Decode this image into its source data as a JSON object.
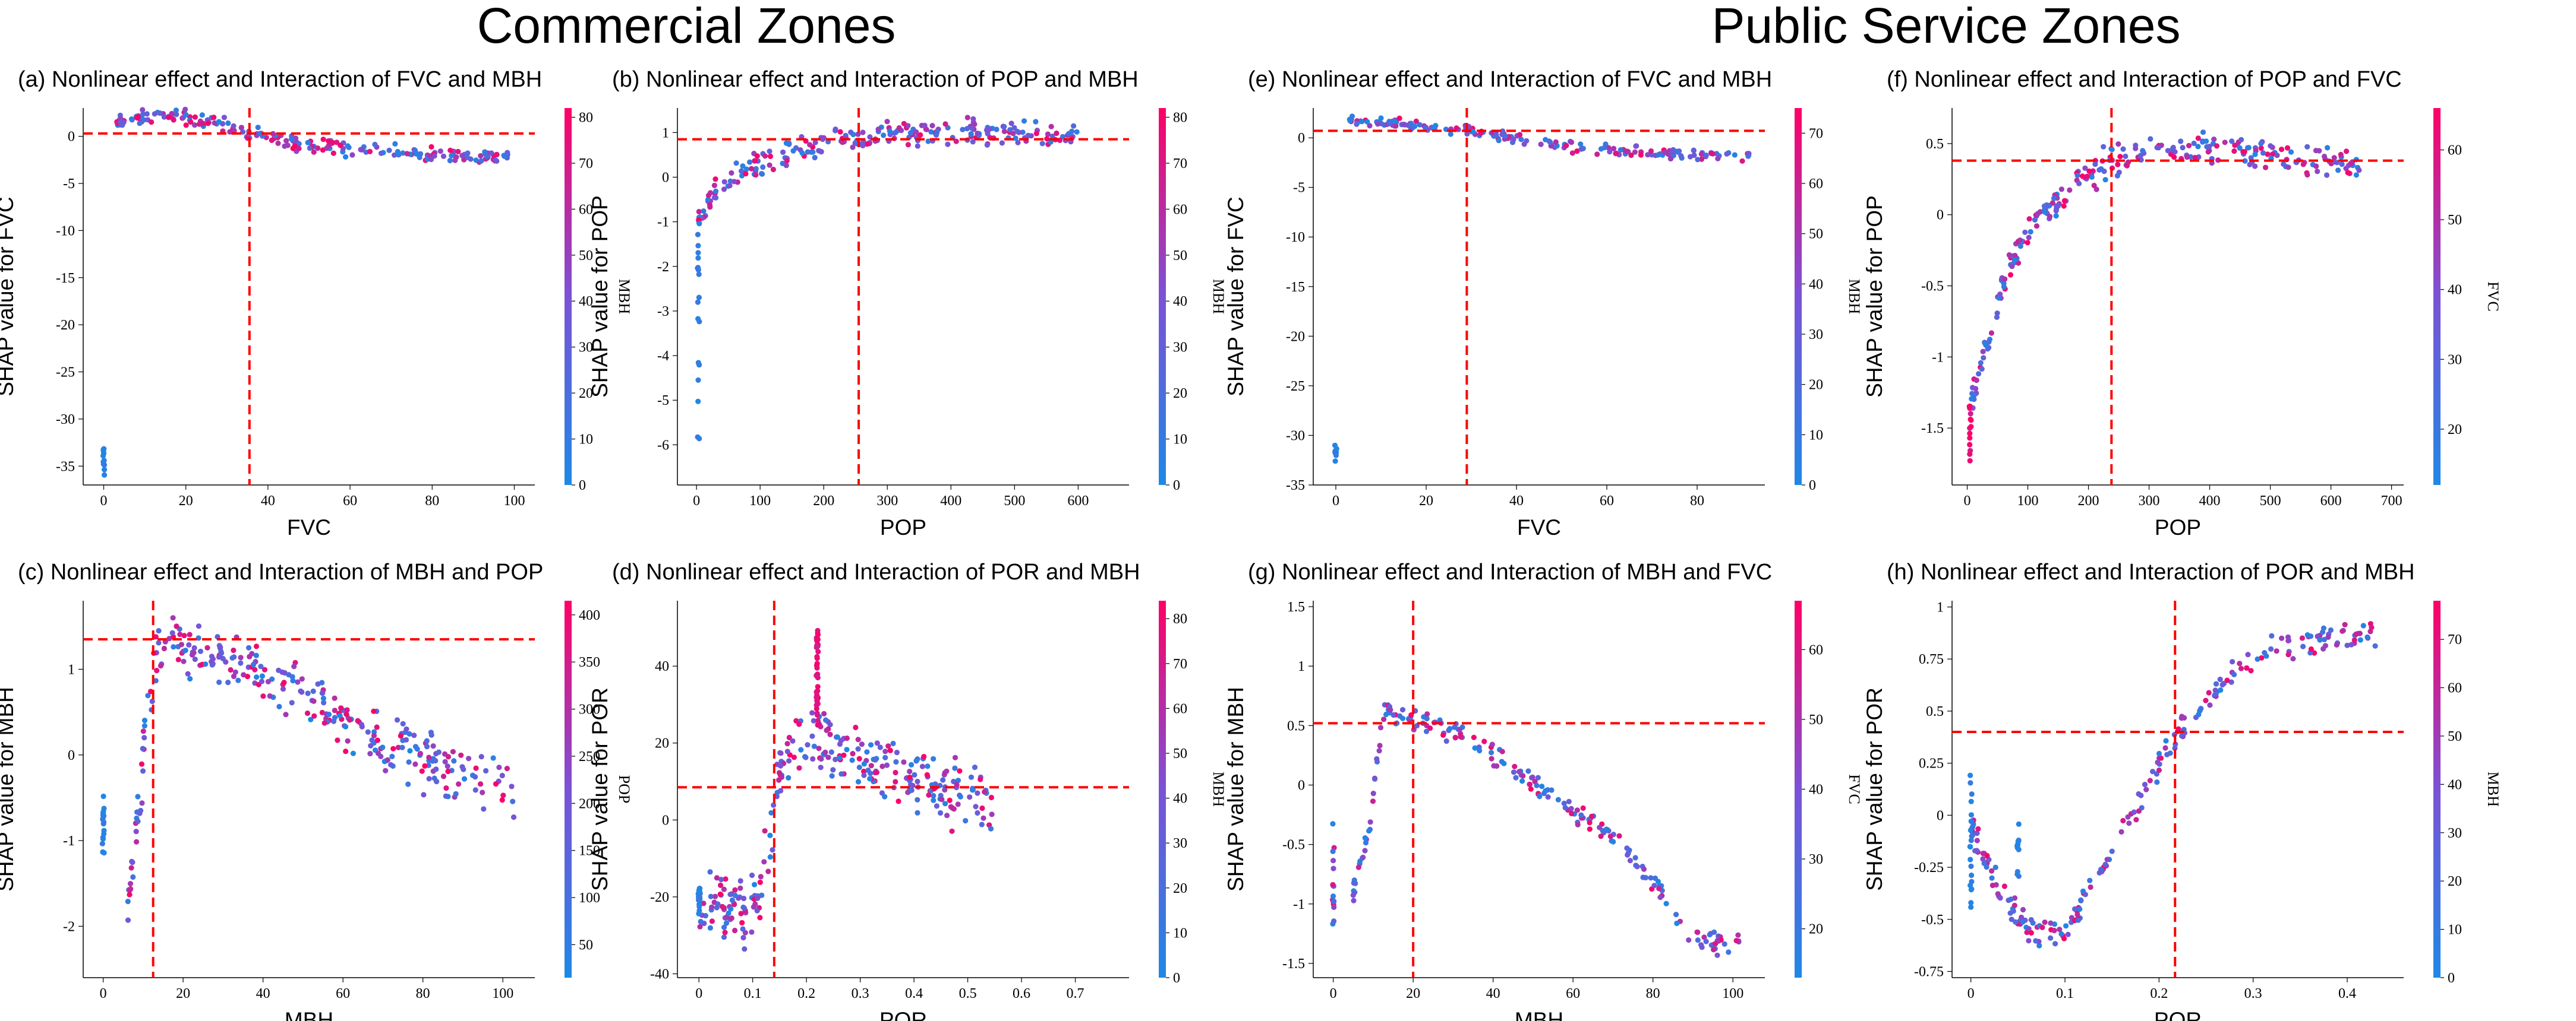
{
  "section_titles": [
    "Commercial Zones",
    "Public Service Zones"
  ],
  "colors": {
    "low": "#1e88e5",
    "mid": "#7b52d6",
    "high": "#ff0066",
    "ref_line": "#ff0000"
  },
  "chart_data": [
    {
      "id": "a",
      "type": "scatter",
      "title": "(a) Nonlinear effect and Interaction of FVC and MBH",
      "xlabel": "FVC",
      "ylabel": "SHAP value for FVC",
      "colorbar_label": "MBH",
      "xlim": [
        -5,
        105
      ],
      "ylim": [
        -37,
        3
      ],
      "xticks": [
        0,
        20,
        40,
        60,
        80,
        100
      ],
      "yticks": [
        0,
        -5,
        -10,
        -15,
        -20,
        -25,
        -30,
        -35
      ],
      "clim": [
        0,
        82
      ],
      "cticks": [
        0,
        10,
        20,
        30,
        40,
        50,
        60,
        70,
        80
      ],
      "ref_lines": {
        "x": 35.5,
        "y": 0.3
      },
      "curve": [
        [
          3,
          1.5
        ],
        [
          10,
          2.2
        ],
        [
          20,
          2.0
        ],
        [
          30,
          1.2
        ],
        [
          35,
          0.4
        ],
        [
          45,
          -0.6
        ],
        [
          60,
          -1.3
        ],
        [
          75,
          -1.8
        ],
        [
          90,
          -2.2
        ],
        [
          100,
          -2.4
        ]
      ],
      "spread": 0.6,
      "n": 220,
      "clusters": [
        {
          "x": 0,
          "y": [
            -36,
            -33
          ],
          "n": 12,
          "color": "low"
        }
      ]
    },
    {
      "id": "b",
      "type": "scatter",
      "title": "(b) Nonlinear effect and Interaction of POP and MBH",
      "xlabel": "POP",
      "ylabel": "SHAP value for POP",
      "colorbar_label": "MBH",
      "xlim": [
        -30,
        680
      ],
      "ylim": [
        -6.9,
        1.55
      ],
      "xticks": [
        0,
        100,
        200,
        300,
        400,
        500,
        600
      ],
      "yticks": [
        1,
        0,
        -1,
        -2,
        -3,
        -4,
        -5,
        -6
      ],
      "clim": [
        0,
        82
      ],
      "cticks": [
        0,
        10,
        20,
        30,
        40,
        50,
        60,
        70,
        80
      ],
      "ref_lines": {
        "x": 255,
        "y": 0.85
      },
      "curve": [
        [
          3,
          -0.9
        ],
        [
          20,
          -0.5
        ],
        [
          50,
          -0.1
        ],
        [
          100,
          0.3
        ],
        [
          150,
          0.6
        ],
        [
          200,
          0.75
        ],
        [
          250,
          0.85
        ],
        [
          300,
          0.95
        ],
        [
          400,
          1.0
        ],
        [
          500,
          1.0
        ],
        [
          600,
          0.95
        ]
      ],
      "spread": 0.22,
      "n": 240,
      "clusters": [
        {
          "x": 3,
          "y": [
            -6.4,
            -1.2
          ],
          "n": 18,
          "color": "low"
        }
      ]
    },
    {
      "id": "c",
      "type": "scatter",
      "title": "(c) Nonlinear effect and Interaction of MBH and POP",
      "xlabel": "MBH",
      "ylabel": "SHAP value for MBH",
      "colorbar_label": "POP",
      "xlim": [
        -5,
        108
      ],
      "ylim": [
        -2.6,
        1.8
      ],
      "xticks": [
        0,
        20,
        40,
        60,
        80,
        100
      ],
      "yticks": [
        1,
        0,
        -1,
        -2
      ],
      "clim": [
        15,
        415
      ],
      "cticks": [
        50,
        100,
        150,
        200,
        250,
        300,
        350,
        400
      ],
      "ref_lines": {
        "x": 12.5,
        "y": 1.35
      },
      "curve": [
        [
          6,
          -1.8
        ],
        [
          9,
          -0.6
        ],
        [
          11,
          0.6
        ],
        [
          13,
          1.2
        ],
        [
          18,
          1.3
        ],
        [
          30,
          1.1
        ],
        [
          45,
          0.85
        ],
        [
          60,
          0.45
        ],
        [
          75,
          0.05
        ],
        [
          90,
          -0.25
        ],
        [
          103,
          -0.5
        ]
      ],
      "spread": 0.28,
      "n": 300,
      "clusters": [
        {
          "x": 0,
          "y": [
            -1.15,
            -0.45
          ],
          "n": 18,
          "color": "low"
        }
      ]
    },
    {
      "id": "d",
      "type": "scatter",
      "title": "(d) Nonlinear effect and Interaction of POR and MBH",
      "xlabel": "POR",
      "ylabel": "SHAP value for POR",
      "colorbar_label": "MBH",
      "xlim": [
        -0.04,
        0.8
      ],
      "ylim": [
        -41,
        57
      ],
      "xticks": [
        0.0,
        0.1,
        0.2,
        0.3,
        0.4,
        0.5,
        0.6,
        0.7
      ],
      "yticks": [
        -40,
        -20,
        0,
        20,
        40
      ],
      "clim": [
        0,
        84
      ],
      "cticks": [
        0,
        10,
        20,
        30,
        40,
        50,
        60,
        70,
        80
      ],
      "ref_lines": {
        "x": 0.14,
        "y": 8.5
      },
      "curve": [
        [
          0.0,
          -22
        ],
        [
          0.05,
          -22
        ],
        [
          0.09,
          -24
        ],
        [
          0.11,
          -20
        ],
        [
          0.13,
          -5
        ],
        [
          0.15,
          12
        ],
        [
          0.18,
          22
        ],
        [
          0.22,
          22
        ],
        [
          0.28,
          18
        ],
        [
          0.35,
          14
        ],
        [
          0.45,
          8
        ],
        [
          0.55,
          4
        ]
      ],
      "spread": 7.0,
      "n": 300,
      "clusters": [
        {
          "x": 0.22,
          "y": [
            25,
            50
          ],
          "n": 40,
          "color": "high"
        },
        {
          "x": 0.0,
          "y": [
            -27,
            -17
          ],
          "n": 16,
          "color": "low"
        }
      ]
    },
    {
      "id": "e",
      "type": "scatter",
      "title": "(e) Nonlinear effect and Interaction of FVC and MBH",
      "xlabel": "FVC",
      "ylabel": "SHAP value for FVC",
      "colorbar_label": "MBH",
      "xlim": [
        -5,
        95
      ],
      "ylim": [
        -35,
        3
      ],
      "xticks": [
        0,
        20,
        40,
        60,
        80
      ],
      "yticks": [
        0,
        -5,
        -10,
        -15,
        -20,
        -25,
        -30,
        -35
      ],
      "clim": [
        0,
        75
      ],
      "cticks": [
        0,
        10,
        20,
        30,
        40,
        50,
        60,
        70
      ],
      "ref_lines": {
        "x": 29,
        "y": 0.7
      },
      "curve": [
        [
          3,
          1.8
        ],
        [
          10,
          1.6
        ],
        [
          20,
          1.2
        ],
        [
          29,
          0.7
        ],
        [
          40,
          -0.2
        ],
        [
          55,
          -1.0
        ],
        [
          70,
          -1.5
        ],
        [
          85,
          -1.8
        ],
        [
          92,
          -1.9
        ]
      ],
      "spread": 0.45,
      "n": 190,
      "clusters": [
        {
          "x": 0,
          "y": [
            -33,
            -31
          ],
          "n": 8,
          "color": "low"
        }
      ]
    },
    {
      "id": "f",
      "type": "scatter",
      "title": "(f) Nonlinear effect and Interaction of POP and FVC",
      "xlabel": "POP",
      "ylabel": "SHAP value for POP",
      "colorbar_label": "FVC",
      "xlim": [
        -25,
        720
      ],
      "ylim": [
        -1.9,
        0.75
      ],
      "xticks": [
        0,
        100,
        200,
        300,
        400,
        500,
        600,
        700
      ],
      "yticks": [
        0.5,
        0.0,
        -0.5,
        -1.0,
        -1.5
      ],
      "clim": [
        12,
        66
      ],
      "cticks": [
        20,
        30,
        40,
        50,
        60
      ],
      "ref_lines": {
        "x": 238,
        "y": 0.38
      },
      "curve": [
        [
          5,
          -1.35
        ],
        [
          20,
          -1.1
        ],
        [
          40,
          -0.8
        ],
        [
          60,
          -0.5
        ],
        [
          80,
          -0.25
        ],
        [
          120,
          0.0
        ],
        [
          170,
          0.2
        ],
        [
          230,
          0.36
        ],
        [
          300,
          0.45
        ],
        [
          400,
          0.48
        ],
        [
          500,
          0.42
        ],
        [
          650,
          0.33
        ]
      ],
      "spread": 0.08,
      "n": 260,
      "clusters": [
        {
          "x": 5,
          "y": [
            -1.8,
            -1.2
          ],
          "n": 14,
          "color": "high"
        }
      ]
    },
    {
      "id": "g",
      "type": "scatter",
      "title": "(g) Nonlinear effect and Interaction of MBH and FVC",
      "xlabel": "MBH",
      "ylabel": "SHAP value for MBH",
      "colorbar_label": "FVC",
      "xlim": [
        -5,
        108
      ],
      "ylim": [
        -1.62,
        1.55
      ],
      "xticks": [
        0,
        20,
        40,
        60,
        80,
        100
      ],
      "yticks": [
        1.5,
        1.0,
        0.5,
        0.0,
        -0.5,
        -1.0,
        -1.5
      ],
      "clim": [
        13,
        67
      ],
      "cticks": [
        20,
        30,
        40,
        50,
        60
      ],
      "ref_lines": {
        "x": 20,
        "y": 0.52
      },
      "curve": [
        [
          5,
          -0.9
        ],
        [
          9,
          -0.4
        ],
        [
          11,
          0.2
        ],
        [
          13,
          0.65
        ],
        [
          20,
          0.55
        ],
        [
          30,
          0.45
        ],
        [
          40,
          0.25
        ],
        [
          55,
          -0.1
        ],
        [
          70,
          -0.45
        ],
        [
          80,
          -0.8
        ],
        [
          90,
          -1.3
        ],
        [
          102,
          -1.35
        ]
      ],
      "spread": 0.07,
      "n": 210,
      "clusters": [
        {
          "x": 0,
          "y": [
            -1.5,
            0.0
          ],
          "n": 16,
          "color": "mixed"
        }
      ]
    },
    {
      "id": "h",
      "type": "scatter",
      "title": "(h) Nonlinear effect and Interaction of POR and MBH",
      "xlabel": "POR",
      "ylabel": "SHAP value for POR",
      "colorbar_label": "MBH",
      "xlim": [
        -0.02,
        0.46
      ],
      "ylim": [
        -0.78,
        1.03
      ],
      "xticks": [
        0.0,
        0.1,
        0.2,
        0.3,
        0.4
      ],
      "yticks": [
        1.0,
        0.75,
        0.5,
        0.25,
        0.0,
        -0.25,
        -0.5,
        -0.75
      ],
      "clim": [
        0,
        78
      ],
      "cticks": [
        0,
        10,
        20,
        30,
        40,
        50,
        60,
        70
      ],
      "ref_lines": {
        "x": 0.217,
        "y": 0.4
      },
      "curve": [
        [
          0.0,
          -0.05
        ],
        [
          0.03,
          -0.35
        ],
        [
          0.06,
          -0.55
        ],
        [
          0.1,
          -0.55
        ],
        [
          0.13,
          -0.35
        ],
        [
          0.16,
          -0.1
        ],
        [
          0.2,
          0.25
        ],
        [
          0.23,
          0.45
        ],
        [
          0.27,
          0.65
        ],
        [
          0.32,
          0.8
        ],
        [
          0.38,
          0.85
        ],
        [
          0.43,
          0.85
        ]
      ],
      "spread": 0.05,
      "n": 230,
      "clusters": [
        {
          "x": 0.0,
          "y": [
            -0.45,
            0.2
          ],
          "n": 20,
          "color": "low"
        },
        {
          "x": 0.05,
          "y": [
            -0.3,
            0.0
          ],
          "n": 12,
          "color": "low"
        }
      ]
    }
  ]
}
